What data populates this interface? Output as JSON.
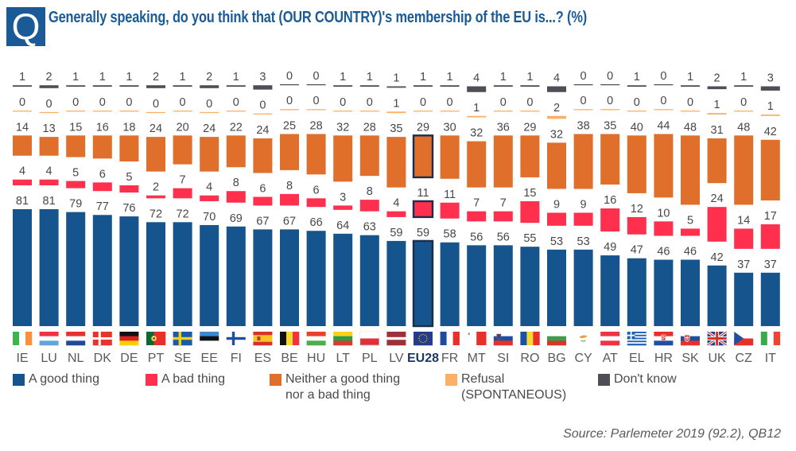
{
  "header": {
    "q_letter": "Q",
    "title": "Generally speaking, do you think that (OUR COUNTRY)'s membership of the EU is...? (%)"
  },
  "chart_data": {
    "type": "bar",
    "stacked": true,
    "orientation": "vertical",
    "title": "Generally speaking, do you think that (OUR COUNTRY)'s membership of the EU is...? (%)",
    "xlabel": "",
    "ylabel": "",
    "unit": "%",
    "ylim": [
      0,
      100
    ],
    "grid": false,
    "legend_position": "bottom",
    "highlight": "EU28",
    "highlight_border": "#1b2d4d",
    "categories": [
      "IE",
      "LU",
      "NL",
      "DK",
      "DE",
      "PT",
      "SE",
      "EE",
      "FI",
      "ES",
      "BE",
      "HU",
      "LT",
      "PL",
      "LV",
      "EU28",
      "FR",
      "MT",
      "SI",
      "RO",
      "BG",
      "CY",
      "AT",
      "EL",
      "HR",
      "SK",
      "UK",
      "CZ",
      "IT"
    ],
    "series": [
      {
        "name": "A good thing",
        "color": "#16548e",
        "values": [
          81,
          81,
          79,
          77,
          76,
          72,
          72,
          70,
          69,
          67,
          67,
          66,
          64,
          63,
          59,
          59,
          58,
          56,
          56,
          55,
          53,
          53,
          49,
          47,
          46,
          46,
          42,
          37,
          37
        ]
      },
      {
        "name": "A bad thing",
        "color": "#ff2f4e",
        "values": [
          4,
          4,
          5,
          6,
          5,
          2,
          7,
          4,
          8,
          6,
          8,
          6,
          3,
          8,
          4,
          11,
          11,
          7,
          7,
          15,
          9,
          9,
          16,
          12,
          10,
          5,
          24,
          14,
          17
        ]
      },
      {
        "name": "Neither a good thing nor a bad thing",
        "color": "#df6f2b",
        "values": [
          14,
          13,
          15,
          16,
          18,
          24,
          20,
          24,
          22,
          24,
          25,
          28,
          32,
          28,
          35,
          29,
          30,
          32,
          36,
          29,
          32,
          38,
          35,
          40,
          44,
          48,
          31,
          48,
          42
        ]
      },
      {
        "name": "Refusal (SPONTANEOUS)",
        "color": "#fbb065",
        "values": [
          0,
          0,
          0,
          0,
          0,
          0,
          0,
          0,
          0,
          0,
          0,
          0,
          0,
          0,
          1,
          0,
          0,
          1,
          0,
          0,
          2,
          0,
          0,
          0,
          0,
          0,
          1,
          0,
          1
        ]
      },
      {
        "name": "Don't know",
        "color": "#4f4e56",
        "values": [
          1,
          2,
          1,
          1,
          1,
          2,
          1,
          2,
          1,
          3,
          0,
          0,
          1,
          1,
          1,
          1,
          1,
          4,
          1,
          1,
          4,
          0,
          0,
          1,
          0,
          1,
          2,
          1,
          3
        ]
      }
    ]
  },
  "flag_icons": [
    "ireland-flag-icon",
    "luxembourg-flag-icon",
    "netherlands-flag-icon",
    "denmark-flag-icon",
    "germany-flag-icon",
    "portugal-flag-icon",
    "sweden-flag-icon",
    "estonia-flag-icon",
    "finland-flag-icon",
    "spain-flag-icon",
    "belgium-flag-icon",
    "hungary-flag-icon",
    "lithuania-flag-icon",
    "poland-flag-icon",
    "latvia-flag-icon",
    "eu-flag-icon",
    "france-flag-icon",
    "malta-flag-icon",
    "slovenia-flag-icon",
    "romania-flag-icon",
    "bulgaria-flag-icon",
    "cyprus-flag-icon",
    "austria-flag-icon",
    "greece-flag-icon",
    "croatia-flag-icon",
    "slovakia-flag-icon",
    "uk-flag-icon",
    "czechia-flag-icon",
    "italy-flag-icon"
  ],
  "legend": {
    "items": [
      {
        "line1": "A good thing",
        "line2": "",
        "color": "#16548e"
      },
      {
        "line1": "A bad thing",
        "line2": "",
        "color": "#ff2f4e"
      },
      {
        "line1": "Neither a good thing",
        "line2": "nor a bad thing",
        "color": "#df6f2b"
      },
      {
        "line1": "Refusal",
        "line2": "(SPONTANEOUS)",
        "color": "#fbb065"
      },
      {
        "line1": "Don't know",
        "line2": "",
        "color": "#4f4e56"
      }
    ]
  },
  "source": "Source: Parlemeter 2019 (92.2), QB12"
}
